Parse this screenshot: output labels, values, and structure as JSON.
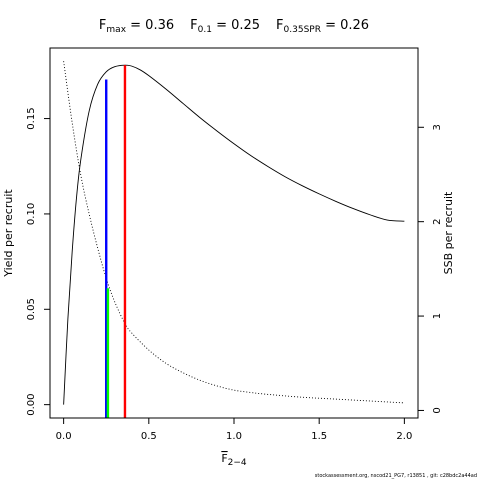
{
  "chart_data": {
    "type": "line",
    "title_parts": [
      {
        "main": "F",
        "sub": "max",
        "rest": " = 0.36"
      },
      {
        "main": "F",
        "sub": "0.1",
        "rest": " = 0.25"
      },
      {
        "main": "F",
        "sub": "0.35SPR",
        "rest": " = 0.26"
      }
    ],
    "xlabel_main": "F",
    "xlabel_sub": "2−4",
    "ylabel_left": "Yield per recruit",
    "ylabel_right": "SSB per recruit",
    "xlim": [
      -0.08,
      2.08
    ],
    "ylim_left": [
      -0.007,
      0.187
    ],
    "ylim_right": [
      -0.08,
      3.84
    ],
    "x_ticks": [
      0,
      0.5,
      1,
      1.5,
      2
    ],
    "x_tick_labels": [
      "0.0",
      "0.5",
      "1.0",
      "1.5",
      "2.0"
    ],
    "y_left_ticks": [
      0,
      0.05,
      0.1,
      0.15
    ],
    "y_left_tick_labels": [
      "0.00",
      "0.05",
      "0.10",
      "0.15"
    ],
    "y_right_ticks": [
      0,
      1,
      2,
      3
    ],
    "y_right_tick_labels": [
      "0",
      "1",
      "2",
      "3"
    ],
    "series": [
      {
        "axis": "left",
        "style": "solid",
        "color": "#000000",
        "x": [
          0,
          0.025,
          0.05,
          0.075,
          0.1,
          0.15,
          0.2,
          0.25,
          0.3,
          0.36,
          0.4,
          0.45,
          0.5,
          0.6,
          0.7,
          0.8,
          0.9,
          1.0,
          1.1,
          1.2,
          1.3,
          1.4,
          1.5,
          1.6,
          1.7,
          1.8,
          1.9,
          2.0
        ],
        "y": [
          0.0,
          0.045,
          0.08,
          0.108,
          0.128,
          0.154,
          0.168,
          0.1745,
          0.1772,
          0.178,
          0.1775,
          0.1755,
          0.1725,
          0.1655,
          0.158,
          0.1505,
          0.1435,
          0.1368,
          0.1305,
          0.1248,
          0.1195,
          0.1148,
          0.1105,
          0.1065,
          0.1028,
          0.0995,
          0.0968,
          0.0962
        ]
      },
      {
        "axis": "right",
        "style": "dotted",
        "color": "#000000",
        "x": [
          0,
          0.05,
          0.1,
          0.15,
          0.2,
          0.25,
          0.3,
          0.36,
          0.4,
          0.5,
          0.6,
          0.7,
          0.8,
          0.9,
          1.0,
          1.1,
          1.2,
          1.4,
          1.6,
          1.8,
          2.0
        ],
        "y": [
          3.7,
          3.05,
          2.5,
          2.08,
          1.72,
          1.4,
          1.15,
          0.92,
          0.82,
          0.64,
          0.5,
          0.4,
          0.32,
          0.26,
          0.215,
          0.19,
          0.17,
          0.14,
          0.12,
          0.1,
          0.08
        ]
      }
    ],
    "reference_lines": [
      {
        "label": "Fmax",
        "x": 0.36,
        "y_to": 0.178,
        "color": "#ff0000"
      },
      {
        "label": "F0.1",
        "x": 0.25,
        "y_to": 0.1705,
        "color": "#0000ff"
      },
      {
        "label": "F0.35SPR",
        "x": 0.26,
        "y_to": 0.061,
        "color": "#00ff00"
      }
    ],
    "footnote": "stockassessment.org, nscod21_PG7, r13851 , git: c28bdc2a44ad"
  }
}
